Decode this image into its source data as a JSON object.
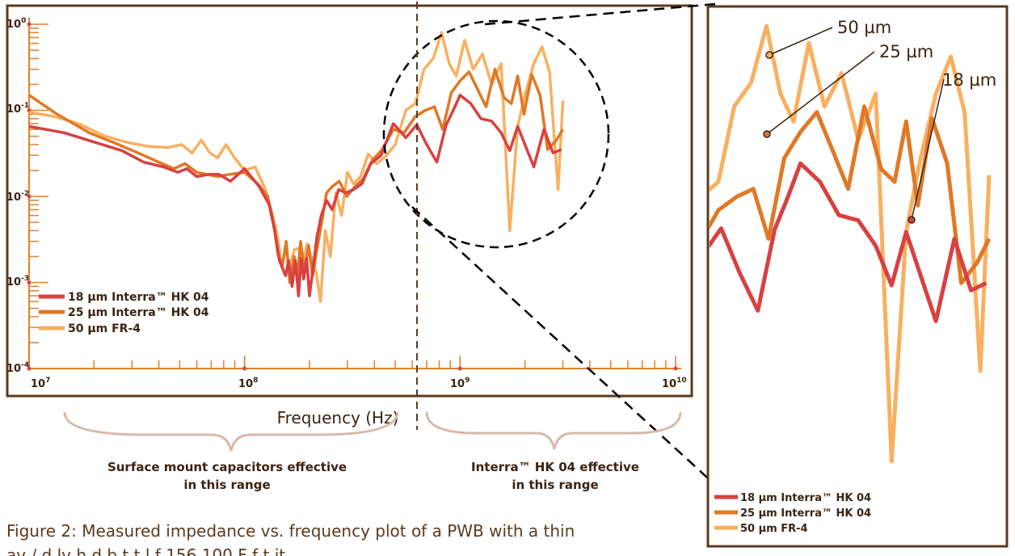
{
  "colors": {
    "frame": "#5c3a1e",
    "axis": "#e0812c",
    "tick_dot": "#d94848",
    "brace": "#d9b8a8",
    "series_18um": "#d94040",
    "series_25um": "#e07826",
    "series_50um": "#f8b060"
  },
  "labels": {
    "x_axis": "Frequency (Hz)",
    "range_left_line1": "Surface mount capacitors effective",
    "range_left_line2": "in this range",
    "range_right_line1": "Interra™ HK 04 effective",
    "range_right_line2": "in this range",
    "caption_line1": "Figure 2: Measured impedance vs. frequency plot of a PWB with a thin",
    "caption_line2_visible": "ay   /        d       ly  h   d   b  t  t  l  f 156  100   F  f                  t       it"
  },
  "legend": {
    "main": [
      {
        "label": "18 µm Interra™ HK 04",
        "color": "#d94040"
      },
      {
        "label": "25 µm Interra™ HK 04",
        "color": "#e07826"
      },
      {
        "label": "50 µm FR-4",
        "color": "#f8b060"
      }
    ],
    "inset": [
      {
        "label": "18 µm Interra™ HK 04",
        "color": "#d94040"
      },
      {
        "label": "25 µm Interra™ HK 04",
        "color": "#e07826"
      },
      {
        "label": "50 µm FR-4",
        "color": "#f8b060"
      }
    ]
  },
  "inset_annotations": [
    "50 µm",
    "25 µm",
    "18 µm"
  ],
  "chart_data": {
    "type": "line",
    "title": "",
    "xlabel": "Frequency (Hz)",
    "ylabel": "",
    "x_scale": "log",
    "y_scale": "log",
    "xlim": [
      10000000,
      10000000000
    ],
    "ylim": [
      0.0001,
      1
    ],
    "x_ticks": [
      {
        "base": "10",
        "exp": "7"
      },
      {
        "base": "10",
        "exp": "8"
      },
      {
        "base": "10",
        "exp": "9"
      },
      {
        "base": "10",
        "exp": "10"
      }
    ],
    "y_ticks": [
      {
        "base": "10",
        "exp": "0"
      },
      {
        "base": "10",
        "exp": "-1"
      },
      {
        "base": "10",
        "exp": "-2"
      },
      {
        "base": "10",
        "exp": "-3"
      },
      {
        "base": "10",
        "exp": "-4"
      }
    ],
    "grid": false,
    "legend_position": "bottom-left",
    "series": [
      {
        "name": "18 µm Interra™ HK 04",
        "x": [
          10000000.0,
          14500000.0,
          20500000.0,
          27000000.0,
          34000000.0,
          42000000.0,
          49000000.0,
          54000000.0,
          60000000.0,
          68000000.0,
          76000000.0,
          86000000.0,
          100000000.0,
          117000000.0,
          130000000.0,
          138000000.0,
          145000000.0,
          155000000.0,
          160000000.0,
          166000000.0,
          172000000.0,
          178000000.0,
          183000000.0,
          188000000.0,
          194000000.0,
          200000000.0,
          208000000.0,
          217000000.0,
          227000000.0,
          240000000.0,
          255000000.0,
          273000000.0,
          295000000.0,
          320000000.0,
          350000000.0,
          385000000.0,
          430000000.0,
          490000000.0,
          560000000.0,
          630000000.0,
          700000000.0,
          780000000.0,
          860000000.0,
          930000000.0,
          1000000000.0,
          1120000000.0,
          1250000000.0,
          1400000000.0,
          1550000000.0,
          1700000000.0,
          1850000000.0,
          2000000000.0,
          2200000000.0,
          2450000000.0,
          2700000000.0,
          2950000000.0
        ],
        "y": [
          0.065,
          0.055,
          0.042,
          0.034,
          0.025,
          0.022,
          0.019,
          0.021,
          0.017,
          0.018,
          0.018,
          0.015,
          0.021,
          0.013,
          0.008,
          0.004,
          0.0018,
          0.0012,
          0.0018,
          0.0009,
          0.0018,
          0.0007,
          0.0019,
          0.0011,
          0.0019,
          0.0007,
          0.0015,
          0.0035,
          0.006,
          0.009,
          0.007,
          0.012,
          0.011,
          0.012,
          0.014,
          0.024,
          0.03,
          0.07,
          0.048,
          0.068,
          0.04,
          0.025,
          0.067,
          0.1,
          0.15,
          0.12,
          0.08,
          0.075,
          0.055,
          0.034,
          0.065,
          0.04,
          0.022,
          0.06,
          0.032,
          0.035
        ]
      },
      {
        "name": "25 µm Interra™ HK 04",
        "x": [
          10000000.0,
          13500000.0,
          19000000.0,
          26000000.0,
          33000000.0,
          40000000.0,
          47000000.0,
          53000000.0,
          60000000.0,
          67000000.0,
          75000000.0,
          85000000.0,
          100000000.0,
          115000000.0,
          128000000.0,
          136000000.0,
          143000000.0,
          150000000.0,
          156000000.0,
          162000000.0,
          170000000.0,
          176000000.0,
          182000000.0,
          190000000.0,
          198000000.0,
          207000000.0,
          217000000.0,
          228000000.0,
          240000000.0,
          255000000.0,
          275000000.0,
          298000000.0,
          325000000.0,
          355000000.0,
          390000000.0,
          435000000.0,
          490000000.0,
          550000000.0,
          620000000.0,
          690000000.0,
          760000000.0,
          830000000.0,
          910000000.0,
          1000000000.0,
          1100000000.0,
          1200000000.0,
          1320000000.0,
          1450000000.0,
          1600000000.0,
          1730000000.0,
          1850000000.0,
          1980000000.0,
          2150000000.0,
          2350000000.0,
          2550000000.0,
          2800000000.0,
          3000000000.0
        ],
        "y": [
          0.15,
          0.09,
          0.055,
          0.04,
          0.031,
          0.025,
          0.021,
          0.024,
          0.019,
          0.018,
          0.017,
          0.018,
          0.019,
          0.014,
          0.01,
          0.005,
          0.0021,
          0.0016,
          0.003,
          0.001,
          0.002,
          0.0012,
          0.003,
          0.0013,
          0.0027,
          0.0012,
          0.0025,
          0.005,
          0.011,
          0.013,
          0.015,
          0.01,
          0.013,
          0.016,
          0.026,
          0.035,
          0.06,
          0.055,
          0.085,
          0.1,
          0.11,
          0.06,
          0.16,
          0.22,
          0.28,
          0.18,
          0.11,
          0.3,
          0.14,
          0.12,
          0.25,
          0.09,
          0.26,
          0.15,
          0.035,
          0.045,
          0.06
        ]
      },
      {
        "name": "50 µm FR-4",
        "x": [
          10000000.0,
          13000000.0,
          17000000.0,
          22500000.0,
          29000000.0,
          36000000.0,
          44000000.0,
          51000000.0,
          57000000.0,
          63000000.0,
          69000000.0,
          75000000.0,
          82000000.0,
          90000000.0,
          100000000.0,
          112000000.0,
          125000000.0,
          135000000.0,
          142000000.0,
          149000000.0,
          155000000.0,
          162000000.0,
          170000000.0,
          178000000.0,
          186000000.0,
          195000000.0,
          205000000.0,
          215000000.0,
          225000000.0,
          237000000.0,
          250000000.0,
          265000000.0,
          282000000.0,
          300000000.0,
          320000000.0,
          345000000.0,
          375000000.0,
          410000000.0,
          450000000.0,
          500000000.0,
          560000000.0,
          620000000.0,
          680000000.0,
          750000000.0,
          820000000.0,
          890000000.0,
          960000000.0,
          1050000000.0,
          1150000000.0,
          1270000000.0,
          1400000000.0,
          1550000000.0,
          1700000000.0,
          1850000000.0,
          2000000000.0,
          2200000000.0,
          2400000000.0,
          2600000000.0,
          2850000000.0,
          3000000000.0
        ],
        "y": [
          0.095,
          0.085,
          0.07,
          0.05,
          0.042,
          0.038,
          0.037,
          0.04,
          0.032,
          0.045,
          0.032,
          0.028,
          0.04,
          0.028,
          0.02,
          0.022,
          0.012,
          0.006,
          0.0035,
          0.0015,
          0.0025,
          0.0015,
          0.0024,
          0.0025,
          0.0016,
          0.0028,
          0.0019,
          0.0013,
          0.0006,
          0.004,
          0.002,
          0.011,
          0.006,
          0.019,
          0.014,
          0.017,
          0.031,
          0.024,
          0.029,
          0.04,
          0.1,
          0.12,
          0.3,
          0.4,
          0.8,
          0.35,
          0.25,
          0.65,
          0.3,
          0.45,
          0.2,
          0.35,
          0.004,
          0.065,
          0.15,
          0.35,
          0.55,
          0.28,
          0.012,
          0.13
        ]
      }
    ]
  }
}
